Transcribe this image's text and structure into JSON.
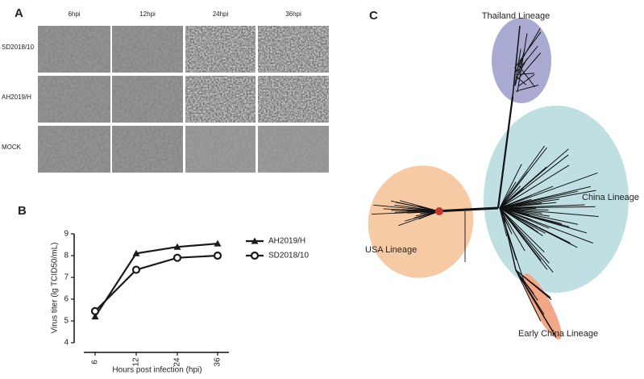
{
  "panel_labels": [
    "A",
    "B",
    "C"
  ],
  "panel_a": {
    "columns": [
      "6hpi",
      "12hpi",
      "24hpi",
      "36hpi"
    ],
    "rows": [
      "SD2018/10",
      "AH2019/H",
      "MOCK"
    ]
  },
  "chart_data": {
    "type": "line",
    "xlabel": "Hours post infection (hpi)",
    "ylabel": "Virus titer (lg TCID50/mL)",
    "categories": [
      "6",
      "12",
      "24",
      "36"
    ],
    "series": [
      {
        "name": "AH2019/H",
        "color": "#1a1a1a",
        "marker": "triangle",
        "values": [
          5.2,
          8.1,
          8.4,
          8.55
        ]
      },
      {
        "name": "SD2018/10",
        "color": "#1a1a1a",
        "marker": "circle",
        "values": [
          5.45,
          7.35,
          7.9,
          8.0
        ]
      }
    ],
    "ylim": [
      4,
      9
    ],
    "yticks": [
      4,
      5,
      6,
      7,
      8,
      9
    ]
  },
  "panel_c": {
    "lineages": [
      "Thailand Lineage",
      "China Lineage",
      "USA Lineage",
      "Early China Lineage"
    ]
  }
}
